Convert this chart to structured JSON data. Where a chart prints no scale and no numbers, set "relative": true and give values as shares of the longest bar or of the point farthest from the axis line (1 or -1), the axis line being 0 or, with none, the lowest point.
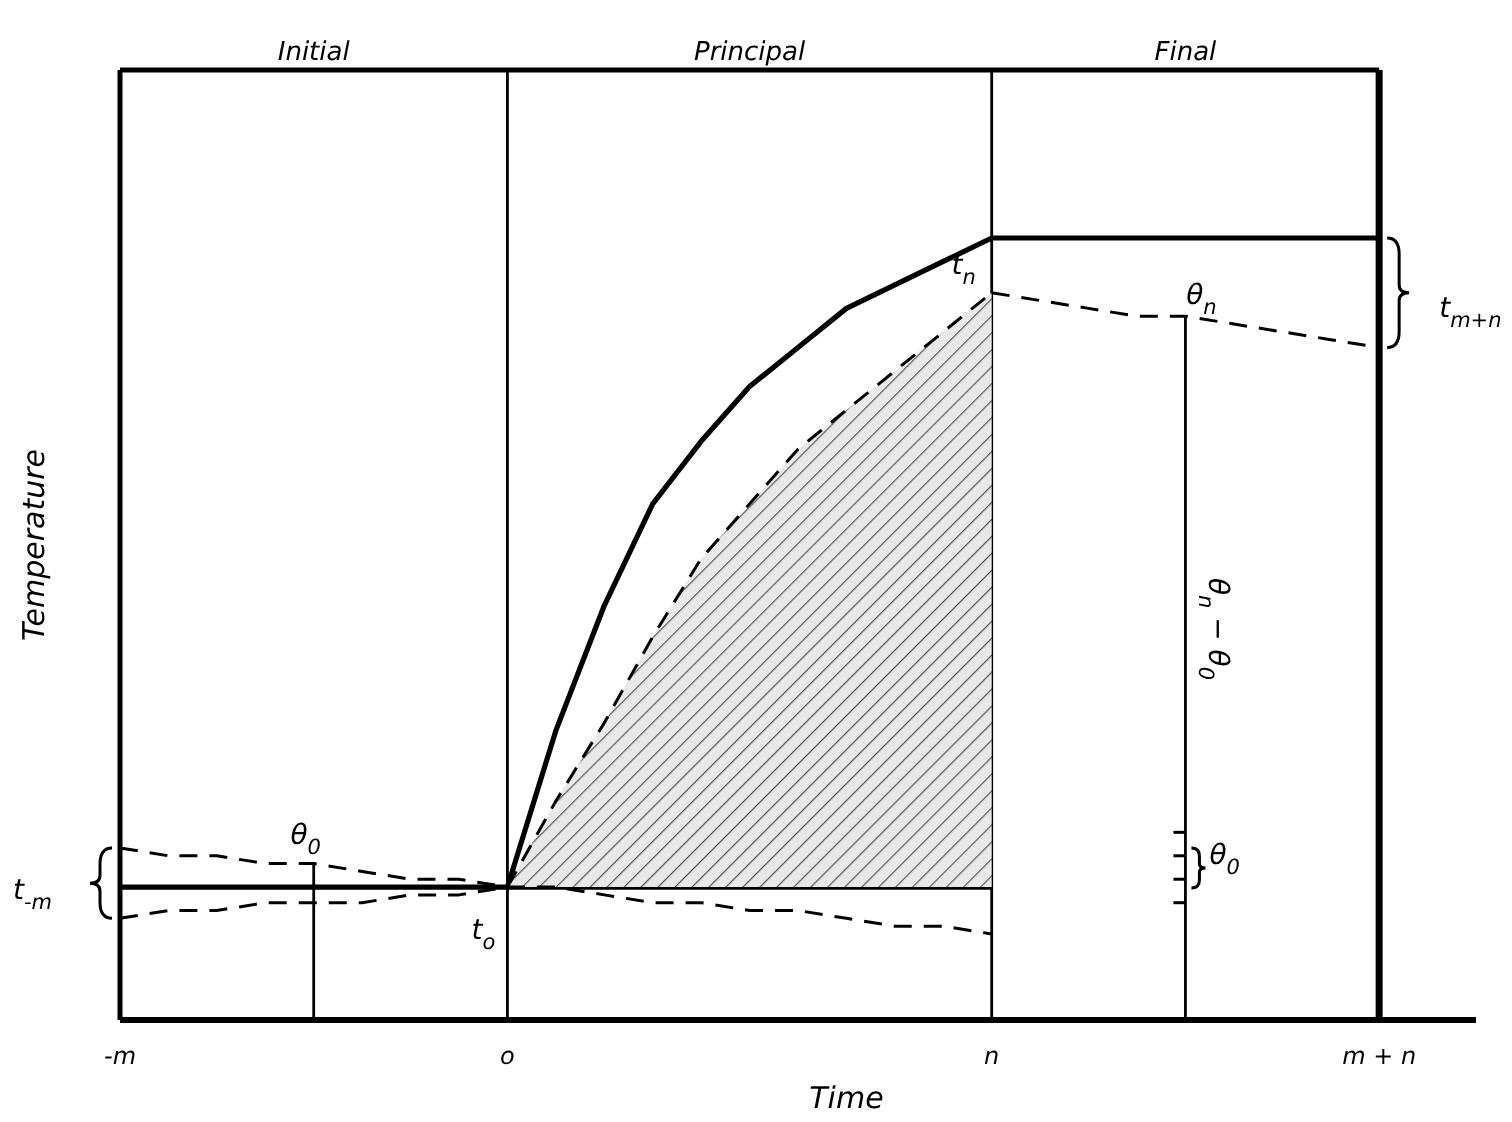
{
  "chart_data": {
    "type": "line",
    "relative": true,
    "xlabel": "Time",
    "ylabel": "Temperature",
    "tick_labels": "x",
    "categories": [
      "-m",
      null,
      null,
      null,
      null,
      null,
      null,
      null,
      "o",
      null,
      null,
      null,
      null,
      null,
      null,
      null,
      null,
      null,
      "n",
      null,
      null,
      null,
      null,
      null,
      null,
      null,
      "m + n",
      null,
      null
    ],
    "series": [
      {
        "color": "#000000",
        "line_style": "solid",
        "values": [
          0.17,
          0.17,
          0.17,
          0.17,
          0.17,
          0.17,
          0.17,
          0.17,
          0.17,
          0.37,
          0.53,
          0.66,
          0.74,
          0.81,
          0.86,
          0.91,
          0.94,
          0.97,
          1,
          1,
          1,
          1,
          1,
          1,
          1,
          1,
          1,
          null,
          null
        ]
      },
      {
        "color": "#000000",
        "line_style": "solid",
        "values": [
          null,
          null,
          null,
          null,
          null,
          null,
          null,
          null,
          0.17,
          0.17,
          0.17,
          0.17,
          0.17,
          0.17,
          0.17,
          0.17,
          0.17,
          0.17,
          0.17,
          null,
          null,
          null,
          null,
          null,
          null,
          null,
          null,
          null,
          null
        ]
      },
      {
        "color": "#000000",
        "line_style": "dashed",
        "values": [
          null,
          null,
          null,
          null,
          null,
          null,
          null,
          null,
          0.17,
          0.28,
          0.38,
          0.49,
          0.59,
          0.66,
          0.73,
          0.78,
          0.83,
          0.88,
          0.93,
          null,
          null,
          null,
          null,
          null,
          null,
          null,
          null,
          null,
          null
        ],
        "lower": [
          null,
          null,
          null,
          null,
          null,
          null,
          null,
          null,
          0.17,
          0.17,
          0.17,
          0.17,
          0.17,
          0.17,
          0.17,
          0.17,
          0.17,
          0.17,
          0.17,
          null,
          null,
          null,
          null,
          null,
          null,
          null,
          null,
          null,
          null
        ],
        "upper": [
          null,
          null,
          null,
          null,
          null,
          null,
          null,
          null,
          0.17,
          0.28,
          0.38,
          0.49,
          0.59,
          0.66,
          0.73,
          0.78,
          0.83,
          0.88,
          0.93,
          null,
          null,
          null,
          null,
          null,
          null,
          null,
          null,
          null,
          null
        ]
      },
      {
        "color": "#000000",
        "line_style": "dashed",
        "values": [
          null,
          null,
          null,
          null,
          null,
          null,
          null,
          null,
          null,
          null,
          null,
          null,
          null,
          null,
          null,
          null,
          null,
          null,
          0.93,
          0.92,
          0.91,
          0.9,
          0.9,
          0.89,
          0.88,
          0.87,
          0.86,
          null,
          null
        ]
      },
      {
        "color": "#000000",
        "line_style": "dashed",
        "values": [
          0.22,
          0.21,
          0.21,
          0.2,
          0.2,
          0.19,
          0.18,
          0.18,
          0.17,
          0.17,
          0.16,
          0.15,
          0.15,
          0.14,
          0.14,
          0.13,
          0.12,
          0.12,
          0.11,
          null,
          null,
          null,
          null,
          null,
          null,
          null,
          null,
          null,
          null
        ]
      },
      {
        "color": "#000000",
        "line_style": "dashed",
        "values": [
          0.13,
          0.14,
          0.14,
          0.15,
          0.15,
          0.15,
          0.16,
          0.16,
          0.17,
          null,
          null,
          null,
          null,
          null,
          null,
          null,
          null,
          null,
          null,
          null,
          null,
          null,
          null,
          null,
          null,
          null,
          null,
          null,
          null
        ]
      }
    ],
    "ref_lines": [
      {
        "axis": "x",
        "value": "o"
      },
      {
        "axis": "x",
        "value": "n"
      },
      {
        "axis": "x",
        "value": "m + n"
      }
    ],
    "annotations": [
      "Initial",
      "Principal",
      "Final",
      "t$_{-m}$",
      "θ$_{0}$",
      "t$_{o}$",
      "t$_{n}$",
      "θ$_{n}$",
      "t$_{m+n}$",
      "θ$_{n}$ − θ$_{0}$",
      "θ$_{0}$"
    ]
  }
}
